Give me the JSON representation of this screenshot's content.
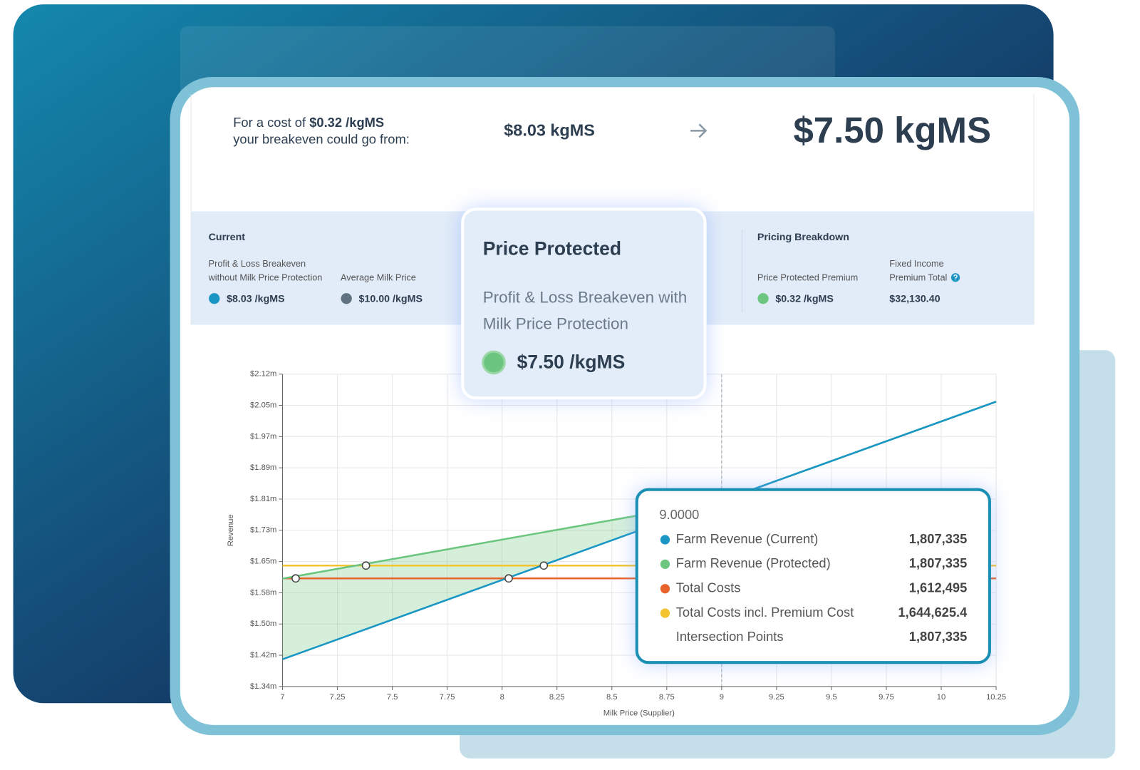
{
  "header": {
    "cost_prefix": "For a cost of",
    "cost": "$0.32 /kgMS",
    "cost_suffix": "your breakeven could go from:",
    "from": "$8.03 kgMS",
    "to": "$7.50 kgMS"
  },
  "summary": {
    "current": {
      "title": "Current",
      "items": [
        {
          "label": [
            "Profit & Loss Breakeven",
            "without Milk Price Protection"
          ],
          "value": "$8.03 /kgMS"
        },
        {
          "label": [
            "Average Milk Price"
          ],
          "value": "$10.00 /kgMS"
        }
      ]
    },
    "pricing": {
      "title": "Pricing Breakdown",
      "items": [
        {
          "label": [
            "Price Protected Premium"
          ],
          "value": "$0.32 /kgMS"
        },
        {
          "label": [
            "Fixed Income",
            "Premium Total"
          ],
          "value": "$32,130.40"
        }
      ]
    }
  },
  "popup": {
    "title": "Price Protected",
    "label": [
      "Profit & Loss Breakeven with",
      "Milk Price Protection"
    ],
    "value": "$7.50 /kgMS"
  },
  "tooltip": {
    "title": "9.0000",
    "values": [
      "1,807,335",
      "1,807,335",
      "1,612,495",
      "1,644,625.4",
      "1,807,335"
    ]
  },
  "chart_data": {
    "type": "line",
    "x_label": "Milk Price (Supplier)",
    "y_label": "Revenue",
    "x": [
      7,
      9,
      10.25
    ],
    "series": [
      {
        "name": "Farm Revenue (Current)",
        "color": "#1a96c4",
        "values": [
          1.41,
          1.807335,
          2.055
        ]
      },
      {
        "name": "Farm Revenue (Protected)",
        "color": "#6cc67f",
        "values": [
          1.612,
          1.807335,
          2.055
        ]
      },
      {
        "name": "Total Costs",
        "color": "#e8622a",
        "values": [
          1.612495,
          1.612495,
          1.612495
        ]
      },
      {
        "name": "Total Costs incl. Premium Cost",
        "color": "#f4c430",
        "values": [
          1.6446254,
          1.6446254,
          1.6446254
        ]
      }
    ],
    "points": {
      "name": "Intersection Points",
      "x": [
        7.06,
        7.38,
        8.03,
        8.19
      ],
      "values": [
        1.612495,
        1.6446254,
        1.612495,
        1.6446254
      ]
    },
    "crosshair": 9,
    "xlim": [
      7,
      10.25
    ],
    "xticks": [
      7,
      7.25,
      7.5,
      7.75,
      8,
      8.25,
      8.5,
      8.75,
      9,
      9.25,
      9.5,
      9.75,
      10,
      10.25
    ],
    "ylim": [
      1.342,
      2.124
    ],
    "yticks": [
      {
        "value": 1.342,
        "label": "$1.34m"
      },
      {
        "value": 1.4202,
        "label": "$1.42m"
      },
      {
        "value": 1.4984,
        "label": "$1.50m"
      },
      {
        "value": 1.5766,
        "label": "$1.58m"
      },
      {
        "value": 1.6548,
        "label": "$1.65m"
      },
      {
        "value": 1.733,
        "label": "$1.73m"
      },
      {
        "value": 1.8112,
        "label": "$1.81m"
      },
      {
        "value": 1.8894,
        "label": "$1.89m"
      },
      {
        "value": 1.9676,
        "label": "$1.97m"
      },
      {
        "value": 2.0458,
        "label": "$2.05m"
      },
      {
        "value": 2.124,
        "label": "$2.12m"
      }
    ],
    "grid": true
  }
}
